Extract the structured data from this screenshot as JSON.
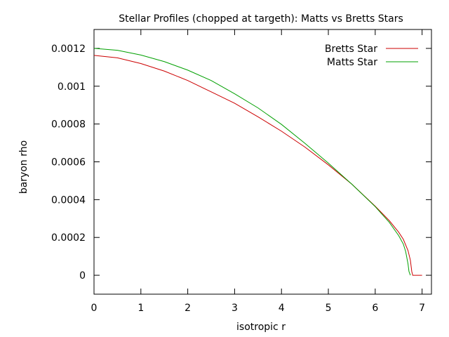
{
  "chart_data": {
    "type": "line",
    "title": "Stellar Profiles (chopped at targeth): Matts vs Bretts Stars",
    "xlabel": "isotropic r",
    "ylabel": "baryon rho",
    "xlim": [
      0,
      7.2
    ],
    "ylim": [
      -0.0001,
      0.0013
    ],
    "xticks": [
      0,
      1,
      2,
      3,
      4,
      5,
      6,
      7
    ],
    "xtick_labels": [
      "0",
      "1",
      "2",
      "3",
      "4",
      "5",
      "6",
      "7"
    ],
    "yticks": [
      0,
      0.0002,
      0.0004,
      0.0006,
      0.0008,
      0.001,
      0.0012
    ],
    "ytick_labels": [
      "0",
      "0.0002",
      "0.0004",
      "0.0006",
      "0.0008",
      "0.001",
      "0.0012"
    ],
    "grid": false,
    "legend_position": "top-right",
    "series": [
      {
        "name": "Bretts Star",
        "color": "#cc0000",
        "x": [
          0,
          0.5,
          1.0,
          1.5,
          2.0,
          2.5,
          3.0,
          3.5,
          4.0,
          4.5,
          5.0,
          5.5,
          6.0,
          6.3,
          6.5,
          6.6,
          6.7,
          6.75,
          6.78,
          6.8,
          6.9,
          7.0
        ],
        "y": [
          0.001163,
          0.00115,
          0.00112,
          0.00108,
          0.00103,
          0.00097,
          0.00091,
          0.000838,
          0.000762,
          0.000678,
          0.000584,
          0.000482,
          0.000365,
          0.000289,
          0.000228,
          0.00019,
          0.00013,
          8e-05,
          2e-05,
          0.0,
          0.0,
          0.0
        ]
      },
      {
        "name": "Matts Star",
        "color": "#00a000",
        "x": [
          0,
          0.5,
          1.0,
          1.5,
          2.0,
          2.5,
          3.0,
          3.5,
          4.0,
          4.5,
          5.0,
          5.5,
          6.0,
          6.3,
          6.5,
          6.6,
          6.65,
          6.7,
          6.72,
          6.75
        ],
        "y": [
          0.0012,
          0.00119,
          0.001165,
          0.00113,
          0.001085,
          0.00103,
          0.00096,
          0.000885,
          0.000798,
          0.000698,
          0.000593,
          0.000482,
          0.000363,
          0.00028,
          0.00021,
          0.000165,
          0.000125,
          6e-05,
          2e-05,
          0.0
        ]
      }
    ]
  }
}
